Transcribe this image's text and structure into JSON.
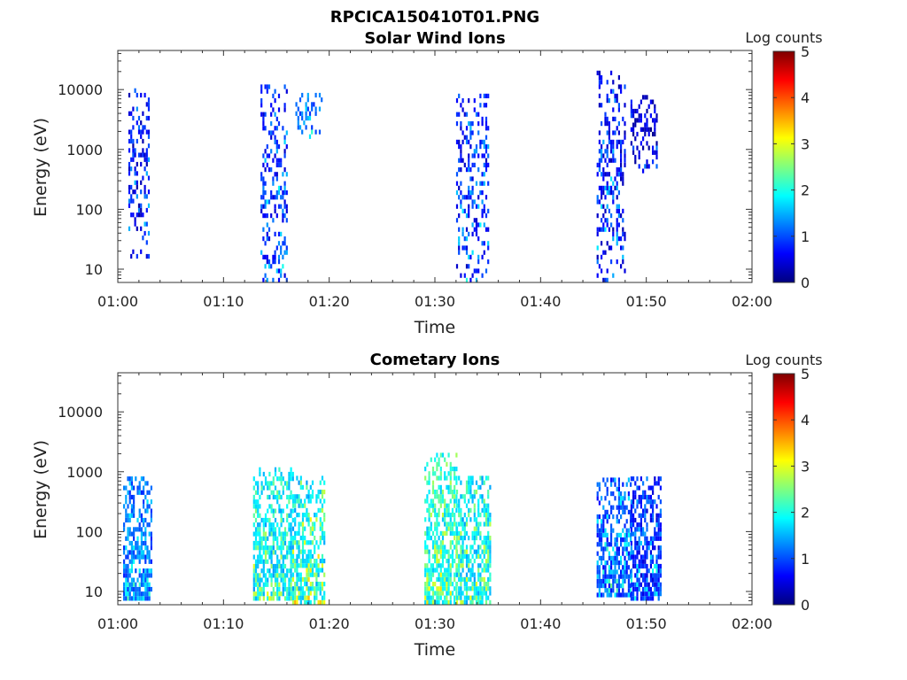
{
  "figure": {
    "title": "RPCICA150410T01.PNG"
  },
  "colorscale": {
    "stops": [
      "#00007f",
      "#0000ff",
      "#007fff",
      "#00ffff",
      "#7fff7f",
      "#ffff00",
      "#ff7f00",
      "#ff0000",
      "#7f0000"
    ]
  },
  "chart_data": [
    {
      "type": "heatmap",
      "title": "Solar Wind Ions",
      "xlabel": "Time",
      "ylabel": "Energy (eV)",
      "xlim": [
        "01:00",
        "02:00"
      ],
      "xticks": [
        "01:00",
        "01:10",
        "01:20",
        "01:30",
        "01:40",
        "01:50",
        "02:00"
      ],
      "yscale": "log",
      "ylim": [
        6,
        45000
      ],
      "yticks": [
        {
          "value": 10,
          "label": "10"
        },
        {
          "value": 100,
          "label": "100"
        },
        {
          "value": 1000,
          "label": "1000"
        },
        {
          "value": 10000,
          "label": "10000"
        }
      ],
      "colorbar": {
        "label": "Log counts",
        "range": [
          0,
          5
        ],
        "ticks": [
          "0",
          "1",
          "2",
          "3",
          "4",
          "5"
        ]
      },
      "bursts": [
        {
          "t_start": 1.0,
          "t_end": 3.0,
          "e_min": 15,
          "e_max": 10000,
          "log_counts_typical": 0.4,
          "log_counts_peak": 1.8
        },
        {
          "t_start": 13.5,
          "t_end": 16.0,
          "e_min": 6,
          "e_max": 12000,
          "log_counts_typical": 0.6,
          "log_counts_peak": 2.0
        },
        {
          "t_start": 16.8,
          "t_end": 19.2,
          "e_min": 1500,
          "e_max": 8000,
          "log_counts_typical": 1.0,
          "log_counts_peak": 2.1
        },
        {
          "t_start": 32.0,
          "t_end": 35.0,
          "e_min": 6,
          "e_max": 7500,
          "log_counts_typical": 0.5,
          "log_counts_peak": 2.0
        },
        {
          "t_start": 45.3,
          "t_end": 48.0,
          "e_min": 6,
          "e_max": 18000,
          "log_counts_typical": 0.4,
          "log_counts_peak": 2.0
        },
        {
          "t_start": 48.5,
          "t_end": 51.0,
          "e_min": 400,
          "e_max": 8000,
          "log_counts_typical": 0.3,
          "log_counts_peak": 1.2
        }
      ]
    },
    {
      "type": "heatmap",
      "title": "Cometary Ions",
      "xlabel": "Time",
      "ylabel": "Energy (eV)",
      "xlim": [
        "01:00",
        "02:00"
      ],
      "xticks": [
        "01:00",
        "01:10",
        "01:20",
        "01:30",
        "01:40",
        "01:50",
        "02:00"
      ],
      "yscale": "log",
      "ylim": [
        6,
        45000
      ],
      "yticks": [
        {
          "value": 10,
          "label": "10"
        },
        {
          "value": 100,
          "label": "100"
        },
        {
          "value": 1000,
          "label": "1000"
        },
        {
          "value": 10000,
          "label": "10000"
        }
      ],
      "colorbar": {
        "label": "Log counts",
        "range": [
          0,
          5
        ],
        "ticks": [
          "0",
          "1",
          "2",
          "3",
          "4",
          "5"
        ]
      },
      "bursts": [
        {
          "t_start": 0.5,
          "t_end": 3.2,
          "e_min": 7,
          "e_max": 800,
          "log_counts_typical": 1.0,
          "log_counts_peak": 2.2
        },
        {
          "t_start": 12.8,
          "t_end": 16.5,
          "e_min": 7,
          "e_max": 1000,
          "log_counts_typical": 1.6,
          "log_counts_peak": 3.0
        },
        {
          "t_start": 16.5,
          "t_end": 19.5,
          "e_min": 6,
          "e_max": 800,
          "log_counts_typical": 1.6,
          "log_counts_peak": 3.6
        },
        {
          "t_start": 29.0,
          "t_end": 32.0,
          "e_min": 6,
          "e_max": 2000,
          "log_counts_typical": 1.8,
          "log_counts_peak": 3.2
        },
        {
          "t_start": 32.0,
          "t_end": 35.2,
          "e_min": 6,
          "e_max": 800,
          "log_counts_typical": 1.6,
          "log_counts_peak": 3.1
        },
        {
          "t_start": 45.3,
          "t_end": 48.5,
          "e_min": 8,
          "e_max": 700,
          "log_counts_typical": 0.8,
          "log_counts_peak": 2.4
        },
        {
          "t_start": 48.5,
          "t_end": 51.3,
          "e_min": 7,
          "e_max": 800,
          "log_counts_typical": 0.6,
          "log_counts_peak": 2.0
        }
      ]
    }
  ]
}
